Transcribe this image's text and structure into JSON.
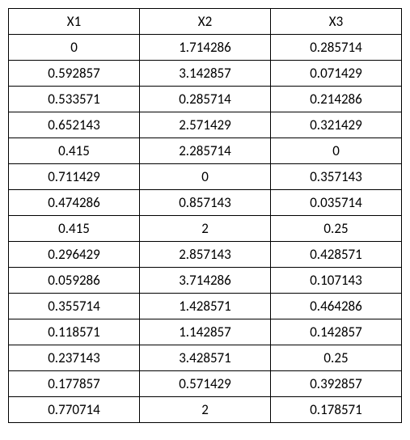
{
  "table": {
    "columns": [
      "X1",
      "X2",
      "X3"
    ],
    "rows": [
      [
        "0",
        "1.714286",
        "0.285714"
      ],
      [
        "0.592857",
        "3.142857",
        "0.071429"
      ],
      [
        "0.533571",
        "0.285714",
        "0.214286"
      ],
      [
        "0.652143",
        "2.571429",
        "0.321429"
      ],
      [
        "0.415",
        "2.285714",
        "0"
      ],
      [
        "0.711429",
        "0",
        "0.357143"
      ],
      [
        "0.474286",
        "0.857143",
        "0.035714"
      ],
      [
        "0.415",
        "2",
        "0.25"
      ],
      [
        "0.296429",
        "2.857143",
        "0.428571"
      ],
      [
        "0.059286",
        "3.714286",
        "0.107143"
      ],
      [
        "0.355714",
        "1.428571",
        "0.464286"
      ],
      [
        "0.118571",
        "1.142857",
        "0.142857"
      ],
      [
        "0.237143",
        "3.428571",
        "0.25"
      ],
      [
        "0.177857",
        "0.571429",
        "0.392857"
      ],
      [
        "0.770714",
        "2",
        "0.178571"
      ]
    ],
    "border_color": "#000000",
    "background_color": "#ffffff",
    "text_color": "#000000",
    "font_size": 17,
    "cell_alignment": "center"
  }
}
